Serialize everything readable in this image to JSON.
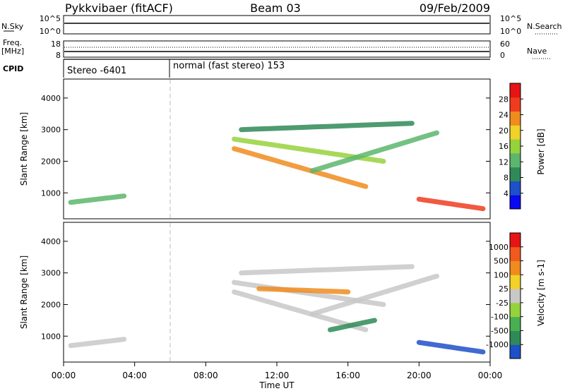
{
  "header": {
    "station": "Pykkvibaer (fitACF)",
    "beam": "Beam 03",
    "date": "09/Feb/2009"
  },
  "param_panels": {
    "nsky": {
      "label": "N.Sky",
      "left_ticks": [
        "10^5",
        "10^0"
      ],
      "right_ticks": [
        "10^5",
        "10^0"
      ],
      "right_label": "N.Search"
    },
    "freq": {
      "label_line1": "Freq.",
      "label_line2": "[MHz]",
      "left_ticks": [
        "18",
        "8"
      ],
      "right_ticks": [
        "60",
        "0"
      ],
      "right_label": "Nave"
    },
    "cpid": {
      "label": "CPID",
      "segments": [
        {
          "text": "Stereo -6401",
          "start_hour": 0,
          "end_hour": 6
        },
        {
          "text": "normal (fast stereo) 153",
          "start_hour": 6,
          "end_hour": 24
        }
      ]
    }
  },
  "colorbars": {
    "power": {
      "label": "Power [dB]",
      "colors": [
        "#0a0af0",
        "#1e50c8",
        "#2f8a57",
        "#5cb66c",
        "#96d23c",
        "#f0d228",
        "#f08c1e",
        "#f03c1e",
        "#e61414"
      ],
      "ticks": [
        "4",
        "8",
        "12",
        "16",
        "20",
        "24",
        "28"
      ]
    },
    "velocity": {
      "label": "Velocity [m s-1]",
      "colors": [
        "#1e50c8",
        "#2f8a57",
        "#48b050",
        "#96d23c",
        "#c8c8c8",
        "#f0d228",
        "#f08c1e",
        "#f05a1e",
        "#e61414"
      ],
      "ticks": [
        "1000",
        "500",
        "100",
        "25",
        "-25",
        "-100",
        "-500",
        "-1000"
      ]
    }
  },
  "axes": {
    "ylabel": "Slant Range [km]",
    "xlabel": "Time UT",
    "xticks": [
      "00:00",
      "04:00",
      "08:00",
      "12:00",
      "16:00",
      "20:00",
      "00:00"
    ],
    "yticks": [
      "1000",
      "2000",
      "3000",
      "4000"
    ]
  },
  "chart_data": [
    {
      "type": "heatmap",
      "name": "power",
      "xlabel": "Time UT",
      "ylabel": "Slant Range [km]",
      "xlim_hours": [
        0,
        24
      ],
      "ylim_km": [
        180,
        4600
      ],
      "colorbar_label": "Power [dB]",
      "features": [
        {
          "t0": 0.4,
          "t1": 3.4,
          "r_start": 700,
          "r_end": 900,
          "level": 3
        },
        {
          "t0": 9.6,
          "t1": 17.0,
          "r_start": 2400,
          "r_end": 1200,
          "level": 6
        },
        {
          "t0": 9.6,
          "t1": 18.0,
          "r_start": 2700,
          "r_end": 2000,
          "level": 4
        },
        {
          "t0": 10.0,
          "t1": 19.6,
          "r_start": 3000,
          "r_end": 3200,
          "level": 2
        },
        {
          "t0": 14.0,
          "t1": 21.0,
          "r_start": 1700,
          "r_end": 2900,
          "level": 3
        },
        {
          "t0": 20.0,
          "t1": 23.6,
          "r_start": 800,
          "r_end": 500,
          "level": 7
        }
      ]
    },
    {
      "type": "heatmap",
      "name": "velocity",
      "xlabel": "Time UT",
      "ylabel": "Slant Range [km]",
      "xlim_hours": [
        0,
        24
      ],
      "ylim_km": [
        180,
        4600
      ],
      "colorbar_label": "Velocity [m s-1]",
      "features": [
        {
          "t0": 0.4,
          "t1": 3.4,
          "r_start": 700,
          "r_end": 900,
          "level": 4
        },
        {
          "t0": 9.6,
          "t1": 17.0,
          "r_start": 2400,
          "r_end": 1200,
          "level": 4
        },
        {
          "t0": 9.6,
          "t1": 18.0,
          "r_start": 2700,
          "r_end": 2000,
          "level": 4
        },
        {
          "t0": 10.0,
          "t1": 19.6,
          "r_start": 3000,
          "r_end": 3200,
          "level": 4
        },
        {
          "t0": 11.0,
          "t1": 16.0,
          "r_start": 2500,
          "r_end": 2400,
          "level": 6
        },
        {
          "t0": 14.0,
          "t1": 21.0,
          "r_start": 1700,
          "r_end": 2900,
          "level": 4
        },
        {
          "t0": 15.0,
          "t1": 17.5,
          "r_start": 1200,
          "r_end": 1500,
          "level": 1
        },
        {
          "t0": 20.0,
          "t1": 23.6,
          "r_start": 800,
          "r_end": 500,
          "level": 0
        }
      ]
    }
  ]
}
